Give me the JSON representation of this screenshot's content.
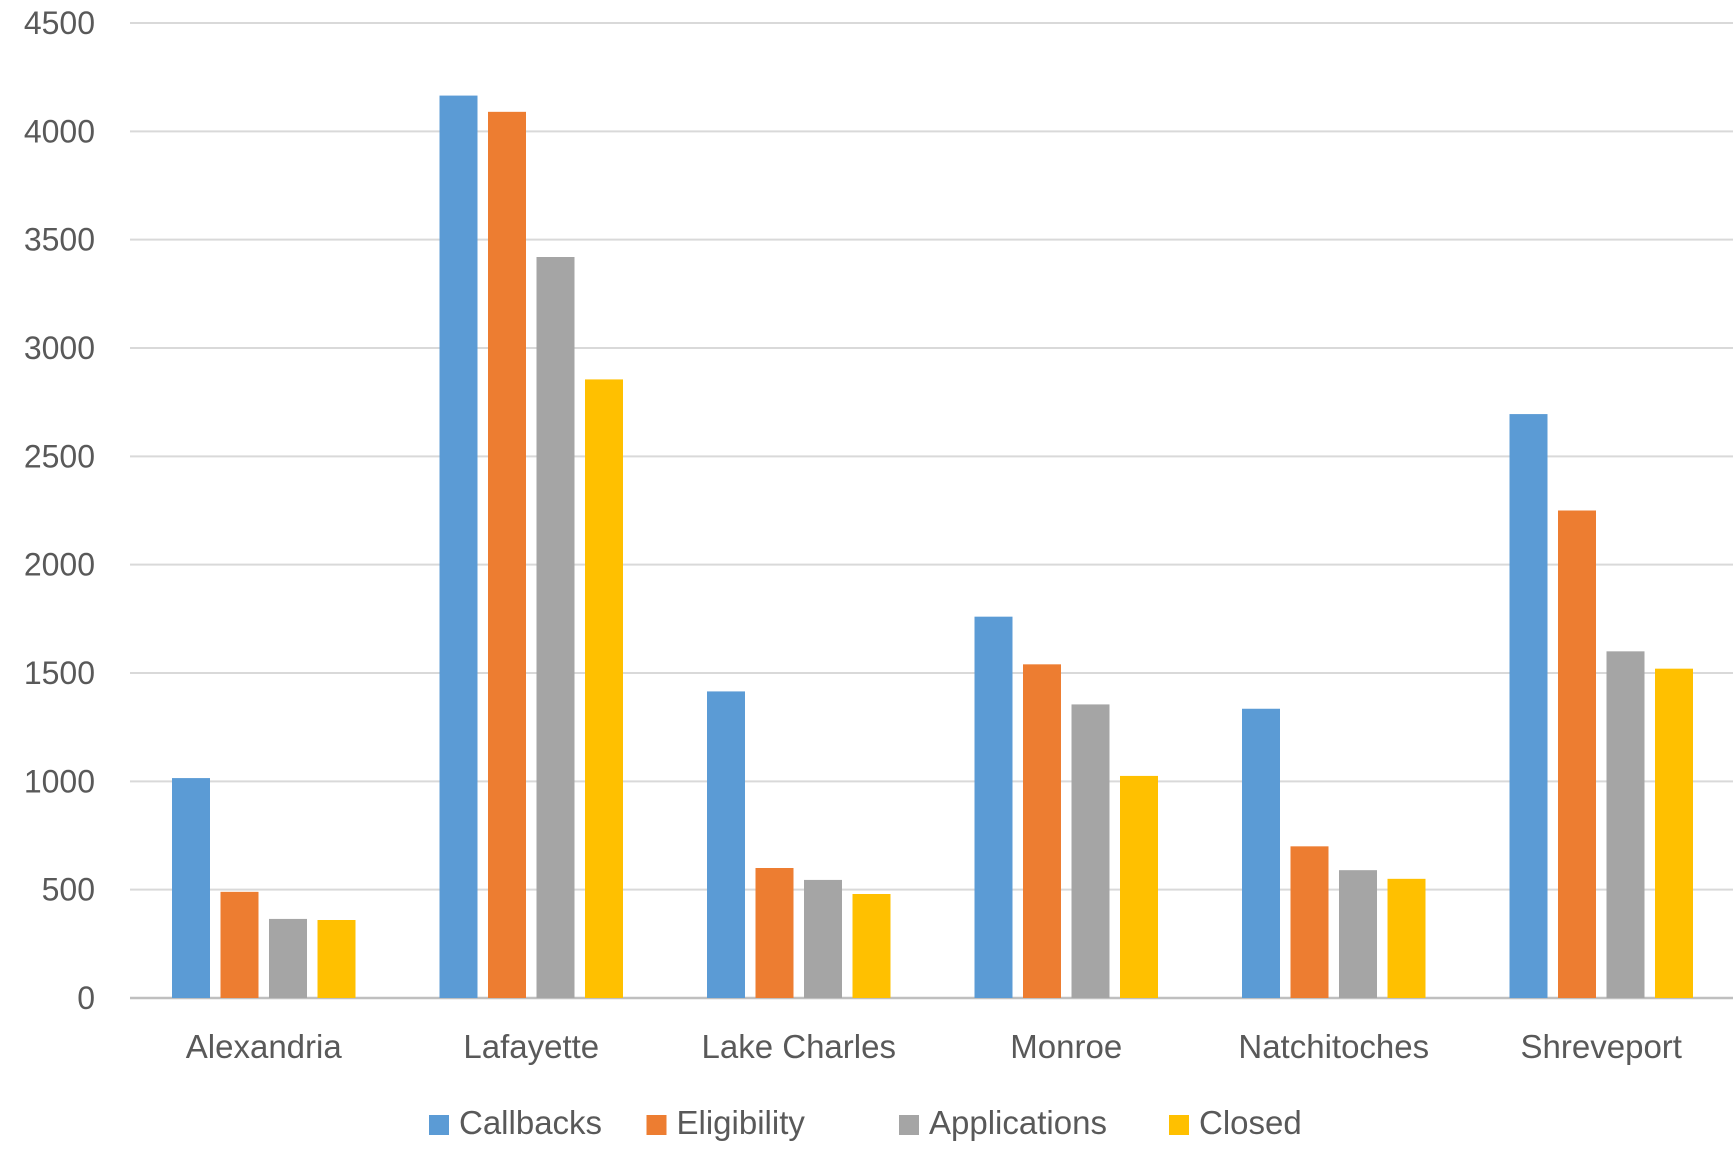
{
  "chart_data": {
    "type": "bar",
    "title": "",
    "xlabel": "",
    "ylabel": "",
    "categories": [
      "Alexandria",
      "Lafayette",
      "Lake Charles",
      "Monroe",
      "Natchitoches",
      "Shreveport"
    ],
    "series": [
      {
        "name": "Callbacks",
        "color": "#5B9BD5",
        "values": [
          1015,
          4165,
          1415,
          1760,
          1335,
          2695
        ]
      },
      {
        "name": "Eligibility",
        "color": "#ED7D31",
        "values": [
          490,
          4090,
          600,
          1540,
          700,
          2250
        ]
      },
      {
        "name": "Applications",
        "color": "#A5A5A5",
        "values": [
          365,
          3420,
          545,
          1355,
          590,
          1600
        ]
      },
      {
        "name": "Closed",
        "color": "#FFC000",
        "values": [
          360,
          2855,
          480,
          1025,
          550,
          1520
        ]
      }
    ],
    "ylim": [
      0,
      4500
    ],
    "yticks": [
      0,
      500,
      1000,
      1500,
      2000,
      2500,
      3000,
      3500,
      4000,
      4500
    ],
    "grid": true,
    "legend_position": "bottom"
  }
}
